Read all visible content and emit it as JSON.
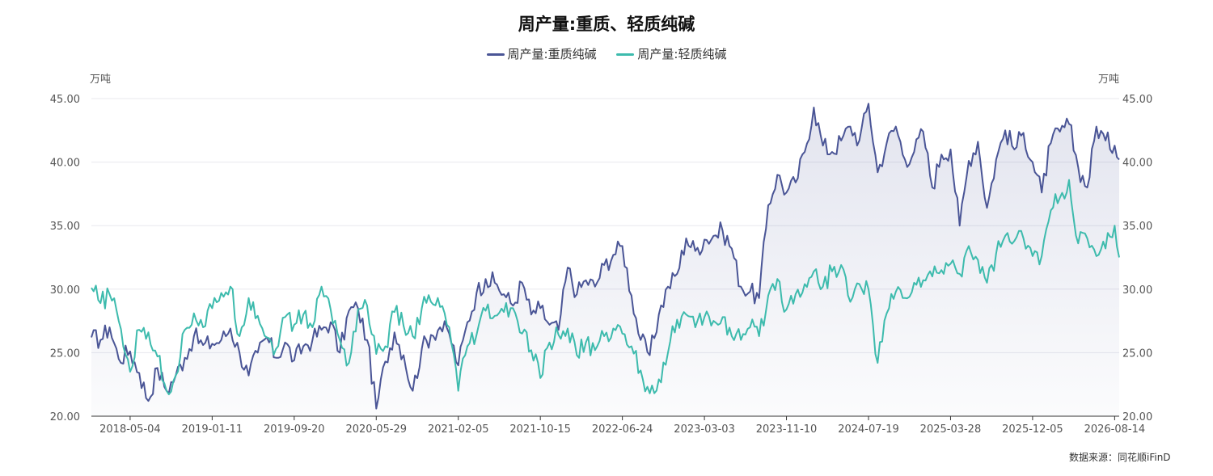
{
  "chart_data": {
    "type": "line",
    "title": "周产量:重质、轻质纯碱",
    "y_unit_left": "万吨",
    "y_unit_right": "万吨",
    "ylim": [
      20,
      45
    ],
    "y_ticks": [
      "20.00",
      "25.00",
      "30.00",
      "35.00",
      "40.00",
      "45.00"
    ],
    "x_range": [
      "2018-01-05",
      "2026-08-28"
    ],
    "x_ticks": [
      "2018-05-04",
      "2019-01-11",
      "2019-09-20",
      "2020-05-29",
      "2021-02-05",
      "2021-10-15",
      "2022-06-24",
      "2023-03-03",
      "2023-11-10",
      "2024-07-19",
      "2025-03-28",
      "2025-12-05",
      "2026-08-14"
    ],
    "grid": true,
    "legend_position": "top-center",
    "series": [
      {
        "name": "周产量:重质纯碱",
        "color": "#4a5596",
        "area": true,
        "points": [
          [
            "2018-01-05",
            26.2
          ],
          [
            "2018-02-02",
            26.0
          ],
          [
            "2018-03-02",
            27.0
          ],
          [
            "2018-03-30",
            24.5
          ],
          [
            "2018-05-04",
            25.1
          ],
          [
            "2018-06-01",
            23.4
          ],
          [
            "2018-06-29",
            21.2
          ],
          [
            "2018-07-27",
            23.8
          ],
          [
            "2018-08-24",
            22.0
          ],
          [
            "2018-09-21",
            23.2
          ],
          [
            "2018-10-19",
            24.6
          ],
          [
            "2018-11-16",
            26.3
          ],
          [
            "2018-12-14",
            25.6
          ],
          [
            "2019-01-11",
            25.7
          ],
          [
            "2019-02-08",
            26.0
          ],
          [
            "2019-03-08",
            26.9
          ],
          [
            "2019-04-05",
            25.0
          ],
          [
            "2019-05-03",
            23.2
          ],
          [
            "2019-05-31",
            25.0
          ],
          [
            "2019-06-28",
            26.2
          ],
          [
            "2019-07-26",
            24.6
          ],
          [
            "2019-08-23",
            25.8
          ],
          [
            "2019-09-20",
            24.4
          ],
          [
            "2019-10-18",
            25.5
          ],
          [
            "2019-11-15",
            26.0
          ],
          [
            "2019-12-13",
            26.8
          ],
          [
            "2020-01-10",
            27.4
          ],
          [
            "2020-02-07",
            25.0
          ],
          [
            "2020-03-06",
            28.3
          ],
          [
            "2020-04-03",
            28.5
          ],
          [
            "2020-05-01",
            26.0
          ],
          [
            "2020-05-29",
            20.6
          ],
          [
            "2020-06-26",
            24.3
          ],
          [
            "2020-07-24",
            26.6
          ],
          [
            "2020-08-21",
            24.8
          ],
          [
            "2020-09-18",
            22.0
          ],
          [
            "2020-10-16",
            25.3
          ],
          [
            "2020-11-13",
            26.4
          ],
          [
            "2020-12-11",
            27.0
          ],
          [
            "2021-01-08",
            26.5
          ],
          [
            "2021-02-05",
            24.0
          ],
          [
            "2021-03-05",
            27.4
          ],
          [
            "2021-04-02",
            29.7
          ],
          [
            "2021-04-30",
            30.8
          ],
          [
            "2021-05-28",
            30.5
          ],
          [
            "2021-06-25",
            29.6
          ],
          [
            "2021-07-23",
            28.7
          ],
          [
            "2021-08-20",
            30.5
          ],
          [
            "2021-09-17",
            28.0
          ],
          [
            "2021-10-15",
            28.5
          ],
          [
            "2021-11-12",
            27.2
          ],
          [
            "2021-12-10",
            26.8
          ],
          [
            "2022-01-07",
            31.7
          ],
          [
            "2022-02-04",
            29.6
          ],
          [
            "2022-03-04",
            30.7
          ],
          [
            "2022-04-01",
            30.2
          ],
          [
            "2022-04-29",
            31.9
          ],
          [
            "2022-05-27",
            32.7
          ],
          [
            "2022-06-24",
            33.4
          ],
          [
            "2022-07-22",
            29.5
          ],
          [
            "2022-08-19",
            26.0
          ],
          [
            "2022-09-16",
            24.8
          ],
          [
            "2022-10-14",
            28.0
          ],
          [
            "2022-11-11",
            30.2
          ],
          [
            "2022-12-09",
            31.2
          ],
          [
            "2023-01-06",
            34.0
          ],
          [
            "2023-02-03",
            33.0
          ],
          [
            "2023-03-03",
            33.9
          ],
          [
            "2023-03-31",
            34.2
          ],
          [
            "2023-04-28",
            34.6
          ],
          [
            "2023-05-26",
            33.2
          ],
          [
            "2023-06-23",
            30.2
          ],
          [
            "2023-07-21",
            29.8
          ],
          [
            "2023-08-18",
            29.3
          ],
          [
            "2023-09-15",
            36.6
          ],
          [
            "2023-10-13",
            39.0
          ],
          [
            "2023-11-10",
            37.6
          ],
          [
            "2023-12-08",
            38.4
          ],
          [
            "2024-01-05",
            40.8
          ],
          [
            "2024-02-02",
            44.3
          ],
          [
            "2024-03-01",
            41.3
          ],
          [
            "2024-03-29",
            40.8
          ],
          [
            "2024-04-26",
            41.7
          ],
          [
            "2024-05-24",
            42.8
          ],
          [
            "2024-06-21",
            41.7
          ],
          [
            "2024-07-19",
            44.6
          ],
          [
            "2024-08-16",
            39.2
          ],
          [
            "2024-09-13",
            41.5
          ],
          [
            "2024-10-11",
            42.8
          ],
          [
            "2024-11-08",
            40.2
          ],
          [
            "2024-12-06",
            40.8
          ],
          [
            "2025-01-03",
            42.4
          ],
          [
            "2025-01-31",
            38.0
          ],
          [
            "2025-02-28",
            40.6
          ],
          [
            "2025-03-28",
            41.0
          ],
          [
            "2025-04-25",
            35.0
          ],
          [
            "2025-05-23",
            40.1
          ],
          [
            "2025-06-20",
            41.6
          ],
          [
            "2025-07-18",
            36.4
          ],
          [
            "2025-08-15",
            40.2
          ],
          [
            "2025-09-12",
            42.5
          ],
          [
            "2025-10-10",
            41.0
          ],
          [
            "2025-11-07",
            42.3
          ],
          [
            "2025-12-05",
            40.0
          ],
          [
            "2026-01-02",
            37.6
          ],
          [
            "2026-01-30",
            41.5
          ],
          [
            "2026-02-27",
            42.4
          ],
          [
            "2026-03-27",
            43.0
          ],
          [
            "2026-04-24",
            39.6
          ],
          [
            "2026-05-22",
            38.0
          ],
          [
            "2026-06-19",
            42.8
          ],
          [
            "2026-07-17",
            41.7
          ],
          [
            "2026-08-14",
            41.3
          ],
          [
            "2026-08-28",
            40.2
          ]
        ]
      },
      {
        "name": "周产量:轻质纯碱",
        "color": "#3dbbad",
        "area": false,
        "points": [
          [
            "2018-01-05",
            30.1
          ],
          [
            "2018-02-02",
            28.9
          ],
          [
            "2018-03-02",
            29.6
          ],
          [
            "2018-03-30",
            27.5
          ],
          [
            "2018-05-04",
            23.5
          ],
          [
            "2018-06-01",
            26.8
          ],
          [
            "2018-06-29",
            26.6
          ],
          [
            "2018-07-27",
            24.7
          ],
          [
            "2018-08-24",
            22.0
          ],
          [
            "2018-09-21",
            23.2
          ],
          [
            "2018-10-19",
            26.8
          ],
          [
            "2018-11-16",
            28.1
          ],
          [
            "2018-12-14",
            27.0
          ],
          [
            "2019-01-11",
            28.5
          ],
          [
            "2019-02-08",
            29.7
          ],
          [
            "2019-03-08",
            30.2
          ],
          [
            "2019-04-05",
            26.3
          ],
          [
            "2019-05-03",
            29.3
          ],
          [
            "2019-05-31",
            27.9
          ],
          [
            "2019-06-28",
            26.2
          ],
          [
            "2019-07-26",
            25.3
          ],
          [
            "2019-08-23",
            27.8
          ],
          [
            "2019-09-20",
            27.2
          ],
          [
            "2019-10-18",
            28.0
          ],
          [
            "2019-11-15",
            27.0
          ],
          [
            "2019-12-13",
            30.2
          ],
          [
            "2020-01-10",
            28.4
          ],
          [
            "2020-02-07",
            26.0
          ],
          [
            "2020-03-06",
            24.2
          ],
          [
            "2020-04-03",
            28.4
          ],
          [
            "2020-05-01",
            28.7
          ],
          [
            "2020-05-29",
            24.9
          ],
          [
            "2020-06-26",
            25.5
          ],
          [
            "2020-07-24",
            28.2
          ],
          [
            "2020-08-21",
            27.1
          ],
          [
            "2020-09-18",
            26.3
          ],
          [
            "2020-10-16",
            28.5
          ],
          [
            "2020-11-13",
            29.0
          ],
          [
            "2020-12-11",
            28.6
          ],
          [
            "2021-01-08",
            27.0
          ],
          [
            "2021-02-05",
            22.0
          ],
          [
            "2021-03-05",
            25.5
          ],
          [
            "2021-04-02",
            26.4
          ],
          [
            "2021-04-30",
            28.3
          ],
          [
            "2021-05-28",
            27.9
          ],
          [
            "2021-06-25",
            28.2
          ],
          [
            "2021-07-23",
            28.5
          ],
          [
            "2021-08-20",
            26.5
          ],
          [
            "2021-09-17",
            25.2
          ],
          [
            "2021-10-15",
            23.0
          ],
          [
            "2021-11-12",
            25.8
          ],
          [
            "2021-12-10",
            26.4
          ],
          [
            "2022-01-07",
            26.9
          ],
          [
            "2022-02-04",
            24.8
          ],
          [
            "2022-03-04",
            25.8
          ],
          [
            "2022-04-01",
            25.2
          ],
          [
            "2022-04-29",
            26.3
          ],
          [
            "2022-05-27",
            26.9
          ],
          [
            "2022-06-24",
            26.5
          ],
          [
            "2022-07-22",
            25.5
          ],
          [
            "2022-08-19",
            23.6
          ],
          [
            "2022-09-16",
            21.8
          ],
          [
            "2022-10-14",
            22.9
          ],
          [
            "2022-11-11",
            25.0
          ],
          [
            "2022-12-09",
            27.6
          ],
          [
            "2023-01-06",
            28.0
          ],
          [
            "2023-02-03",
            27.0
          ],
          [
            "2023-03-03",
            27.8
          ],
          [
            "2023-03-31",
            27.5
          ],
          [
            "2023-04-28",
            27.8
          ],
          [
            "2023-05-26",
            26.3
          ],
          [
            "2023-06-23",
            26.0
          ],
          [
            "2023-07-21",
            27.0
          ],
          [
            "2023-08-18",
            26.3
          ],
          [
            "2023-09-15",
            29.5
          ],
          [
            "2023-10-13",
            30.8
          ],
          [
            "2023-11-10",
            28.4
          ],
          [
            "2023-12-08",
            29.6
          ],
          [
            "2024-01-05",
            30.4
          ],
          [
            "2024-02-02",
            31.4
          ],
          [
            "2024-03-01",
            30.2
          ],
          [
            "2024-03-29",
            31.4
          ],
          [
            "2024-04-26",
            31.9
          ],
          [
            "2024-05-24",
            29.0
          ],
          [
            "2024-06-21",
            30.4
          ],
          [
            "2024-07-19",
            30.0
          ],
          [
            "2024-08-16",
            24.2
          ],
          [
            "2024-09-13",
            28.1
          ],
          [
            "2024-10-11",
            29.8
          ],
          [
            "2024-11-08",
            29.3
          ],
          [
            "2024-12-06",
            30.5
          ],
          [
            "2025-01-03",
            30.7
          ],
          [
            "2025-01-31",
            31.0
          ],
          [
            "2025-02-28",
            31.5
          ],
          [
            "2025-03-28",
            32.0
          ],
          [
            "2025-04-25",
            31.2
          ],
          [
            "2025-05-23",
            33.4
          ],
          [
            "2025-06-20",
            32.3
          ],
          [
            "2025-07-18",
            30.5
          ],
          [
            "2025-08-15",
            32.8
          ],
          [
            "2025-09-12",
            34.2
          ],
          [
            "2025-10-10",
            33.8
          ],
          [
            "2025-11-07",
            34.0
          ],
          [
            "2025-12-05",
            32.6
          ],
          [
            "2026-01-02",
            32.6
          ],
          [
            "2026-01-30",
            36.2
          ],
          [
            "2026-02-27",
            37.2
          ],
          [
            "2026-03-27",
            38.6
          ],
          [
            "2026-04-24",
            33.6
          ],
          [
            "2026-05-22",
            34.0
          ],
          [
            "2026-06-19",
            32.6
          ],
          [
            "2026-07-17",
            33.2
          ],
          [
            "2026-08-14",
            35.0
          ],
          [
            "2026-08-28",
            32.5
          ]
        ]
      }
    ],
    "source_text": "数据来源：同花顺iFinD"
  }
}
